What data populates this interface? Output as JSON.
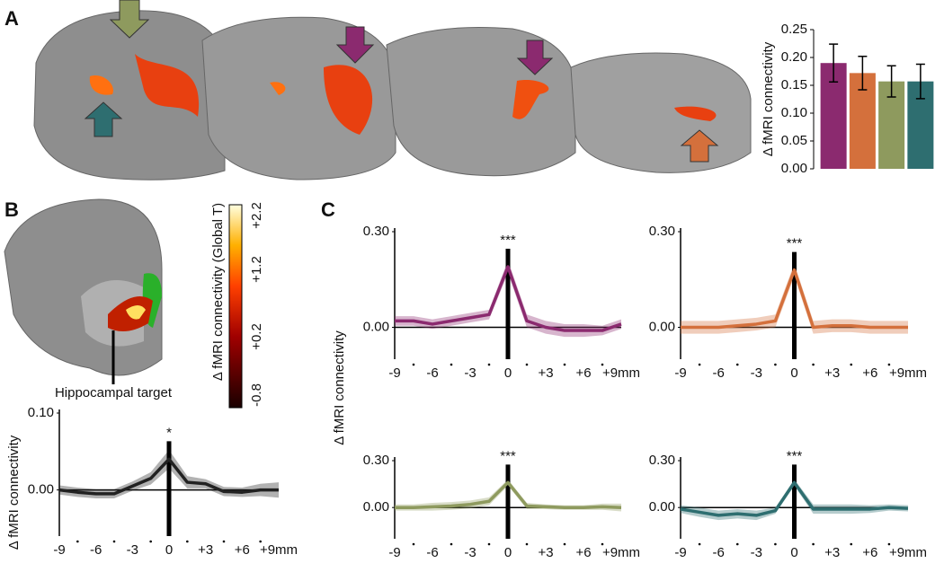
{
  "panels": [
    "A",
    "B",
    "C"
  ],
  "colorbar": {
    "title": "Δ fMRI connectivity (Global T)",
    "labels": [
      "+2.2",
      "+1.2",
      "+0.2",
      "-0.8"
    ]
  },
  "target_label": "Hippocampal target",
  "shared_ylabel": "Δ fMRI connectivity",
  "chart_data": [
    {
      "type": "bar",
      "ylabel": "Δ fMRI connectivity",
      "categories": [
        null,
        null,
        null,
        null
      ],
      "values": [
        0.19,
        0.172,
        0.157,
        0.157
      ],
      "error": [
        0.034,
        0.03,
        0.028,
        0.031
      ],
      "colors": [
        "#8b2a6f",
        "#d4703c",
        "#8e9a5e",
        "#2e6e70"
      ],
      "ylim": [
        0,
        0.25
      ],
      "yticks": [
        {
          "value": 0,
          "label": "0.00"
        },
        {
          "value": 0.05,
          "label": "0.05"
        },
        {
          "value": 0.1,
          "label": "0.10"
        },
        {
          "value": 0.15,
          "label": "0.15"
        },
        {
          "value": 0.2,
          "label": "0.20"
        },
        {
          "value": 0.25,
          "label": "0.25"
        }
      ]
    },
    {
      "type": "line",
      "ylabel": "Δ fMRI connectivity",
      "annotation": "*",
      "x": [
        -9,
        -7.5,
        -6,
        -4.5,
        -3,
        -1.5,
        0,
        1.5,
        3,
        4.5,
        6,
        7.5,
        9
      ],
      "series": [
        {
          "color": "#222222",
          "values": [
            0.0,
            -0.003,
            -0.005,
            -0.005,
            0.005,
            0.015,
            0.04,
            0.01,
            0.008,
            -0.002,
            -0.003,
            0.0,
            0.0
          ],
          "error": [
            0.006,
            0.006,
            0.006,
            0.006,
            0.006,
            0.008,
            0.012,
            0.008,
            0.006,
            0.006,
            0.006,
            0.008,
            0.01
          ]
        }
      ],
      "xlim": [
        -9,
        9
      ],
      "ylim": [
        -0.06,
        0.1
      ],
      "xticks": [
        -9,
        -6,
        -3,
        0,
        {
          "value": 3,
          "label": "+3"
        },
        {
          "value": 6,
          "label": "+6"
        },
        {
          "value": 9,
          "label": "+9mm"
        }
      ],
      "xminor_ticks": [
        -7.5,
        -4.5,
        -1.5,
        1.5,
        4.5,
        7.5
      ],
      "yticks": [
        {
          "value": 0,
          "label": "0.00"
        },
        {
          "value": 0.1,
          "label": "0.10"
        }
      ]
    },
    {
      "type": "line",
      "annotation": "***",
      "x": [
        -9,
        -7.5,
        -6,
        -4.5,
        -3,
        -1.5,
        0,
        1.5,
        3,
        4.5,
        6,
        7.5,
        9
      ],
      "series": [
        {
          "color": "#8b2a6f",
          "values": [
            0.02,
            0.02,
            0.01,
            0.02,
            0.03,
            0.04,
            0.19,
            0.02,
            0.0,
            -0.01,
            -0.01,
            -0.01,
            0.01
          ],
          "error": [
            0.015,
            0.015,
            0.015,
            0.015,
            0.015,
            0.015,
            0.02,
            0.02,
            0.02,
            0.02,
            0.02,
            0.015,
            0.015
          ]
        }
      ],
      "xlim": [
        -9,
        9
      ],
      "ylim": [
        -0.1,
        0.3
      ],
      "xticks": [
        -9,
        -6,
        -3,
        0,
        {
          "value": 3,
          "label": "+3"
        },
        {
          "value": 6,
          "label": "+6"
        },
        {
          "value": 9,
          "label": "+9mm"
        }
      ],
      "xminor_ticks": [
        -7.5,
        -4.5,
        -1.5,
        1.5,
        4.5,
        7.5
      ],
      "yticks": [
        {
          "value": 0,
          "label": "0.00"
        },
        {
          "value": 0.3,
          "label": "0.30"
        }
      ]
    },
    {
      "type": "line",
      "annotation": "***",
      "x": [
        -9,
        -7.5,
        -6,
        -4.5,
        -3,
        -1.5,
        0,
        1.5,
        3,
        4.5,
        6,
        7.5,
        9
      ],
      "series": [
        {
          "color": "#d4703c",
          "values": [
            0.0,
            0.0,
            0.0,
            0.005,
            0.01,
            0.02,
            0.18,
            0.0,
            0.005,
            0.005,
            0.0,
            0.0,
            0.0
          ],
          "error": [
            0.02,
            0.02,
            0.02,
            0.02,
            0.02,
            0.02,
            0.02,
            0.02,
            0.02,
            0.02,
            0.02,
            0.02,
            0.02
          ]
        }
      ],
      "xlim": [
        -9,
        9
      ],
      "ylim": [
        -0.1,
        0.3
      ],
      "xticks": [
        -9,
        -6,
        -3,
        0,
        {
          "value": 3,
          "label": "+3"
        },
        {
          "value": 6,
          "label": "+6"
        },
        {
          "value": 9,
          "label": "+9mm"
        }
      ],
      "xminor_ticks": [
        -7.5,
        -4.5,
        -1.5,
        1.5,
        4.5,
        7.5
      ],
      "yticks": [
        {
          "value": 0,
          "label": "0.00"
        },
        {
          "value": 0.3,
          "label": "0.30"
        }
      ]
    },
    {
      "type": "line",
      "annotation": "***",
      "x": [
        -9,
        -7.5,
        -6,
        -4.5,
        -3,
        -1.5,
        0,
        1.5,
        3,
        4.5,
        6,
        7.5,
        9
      ],
      "series": [
        {
          "color": "#8e9a5e",
          "values": [
            0.0,
            0.0,
            0.005,
            0.01,
            0.02,
            0.04,
            0.16,
            0.01,
            0.005,
            0.0,
            0.0,
            0.005,
            0.0
          ],
          "error": [
            0.02,
            0.02,
            0.025,
            0.025,
            0.025,
            0.025,
            0.02,
            0.02,
            0.015,
            0.015,
            0.015,
            0.02,
            0.025
          ]
        }
      ],
      "xlim": [
        -9,
        9
      ],
      "ylim": [
        -0.2,
        0.3
      ],
      "xticks": [
        -9,
        -6,
        -3,
        0,
        {
          "value": 3,
          "label": "+3"
        },
        {
          "value": 6,
          "label": "+6"
        },
        {
          "value": 9,
          "label": "+9mm"
        }
      ],
      "xminor_ticks": [
        -7.5,
        -4.5,
        -1.5,
        1.5,
        4.5,
        7.5
      ],
      "yticks": [
        {
          "value": 0,
          "label": "0.00"
        },
        {
          "value": 0.3,
          "label": "0.30"
        }
      ]
    },
    {
      "type": "line",
      "annotation": "***",
      "x": [
        -9,
        -7.5,
        -6,
        -4.5,
        -3,
        -1.5,
        0,
        1.5,
        3,
        4.5,
        6,
        7.5,
        9
      ],
      "series": [
        {
          "color": "#2e6e70",
          "values": [
            -0.01,
            -0.03,
            -0.05,
            -0.04,
            -0.05,
            -0.02,
            0.16,
            -0.01,
            -0.01,
            -0.01,
            -0.01,
            0.0,
            -0.005
          ],
          "error": [
            0.025,
            0.03,
            0.03,
            0.03,
            0.03,
            0.02,
            0.02,
            0.03,
            0.03,
            0.03,
            0.025,
            0.02,
            0.02
          ]
        }
      ],
      "xlim": [
        -9,
        9
      ],
      "ylim": [
        -0.2,
        0.3
      ],
      "xticks": [
        -9,
        -6,
        -3,
        0,
        {
          "value": 3,
          "label": "+3"
        },
        {
          "value": 6,
          "label": "+6"
        },
        {
          "value": 9,
          "label": "+9mm"
        }
      ],
      "xminor_ticks": [
        -7.5,
        -4.5,
        -1.5,
        1.5,
        4.5,
        7.5
      ],
      "yticks": [
        {
          "value": 0,
          "label": "0.00"
        },
        {
          "value": 0.3,
          "label": "0.30"
        }
      ]
    }
  ]
}
